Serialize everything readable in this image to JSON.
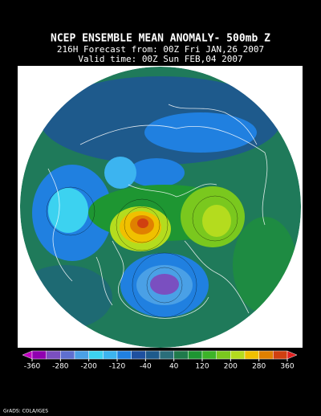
{
  "header": {
    "title": "NCEP ENSEMBLE MEAN ANOMALY- 500mb Z",
    "forecast": "216H Forecast from: 00Z Fri JAN,26 2007",
    "valid": "Valid time: 00Z Sun FEB,04 2007"
  },
  "colorbar": {
    "ticks": [
      -360,
      -280,
      -200,
      -120,
      -40,
      40,
      120,
      200,
      280,
      360
    ],
    "range": [
      -360,
      360
    ],
    "colors": [
      "#c000c0",
      "#9000b0",
      "#7a4fc0",
      "#5e6fd0",
      "#4aa0e6",
      "#3cd2f0",
      "#3cb4f0",
      "#2080e0",
      "#1e50a0",
      "#1e5a8c",
      "#2a6e7a",
      "#1f7a4b",
      "#1e9632",
      "#3cb428",
      "#7ac81e",
      "#b4dc1e",
      "#f0c000",
      "#e08000",
      "#d04010",
      "#e01e1e"
    ]
  },
  "footer": "GrADS: COLA/IGES"
}
